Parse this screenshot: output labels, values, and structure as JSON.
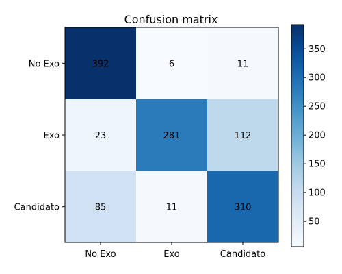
{
  "chart_data": {
    "type": "heatmap",
    "title": "Confusion matrix",
    "xlabel": "",
    "ylabel": "",
    "x_categories": [
      "No Exo",
      "Exo",
      "Candidato"
    ],
    "y_categories": [
      "No Exo",
      "Exo",
      "Candidato"
    ],
    "values": [
      [
        392,
        6,
        11
      ],
      [
        23,
        281,
        112
      ],
      [
        85,
        11,
        310
      ]
    ],
    "colormap": "Blues",
    "colorbar": {
      "min": 6,
      "max": 392,
      "ticks": [
        50,
        100,
        150,
        200,
        250,
        300,
        350
      ]
    },
    "grid": false
  }
}
